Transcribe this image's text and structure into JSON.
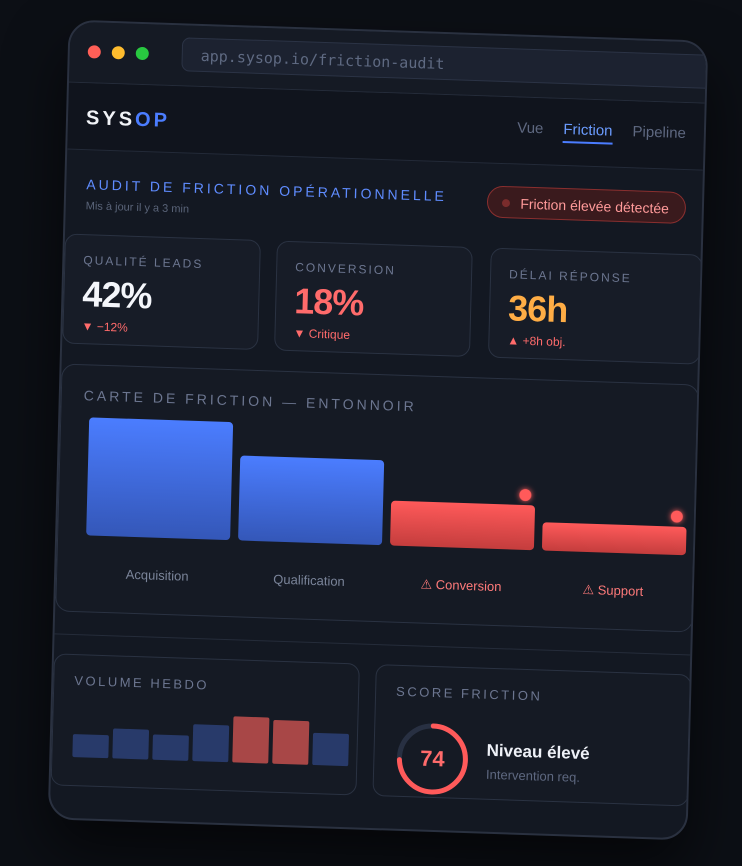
{
  "browser": {
    "url": "app.sysop.io/friction-audit"
  },
  "brand": {
    "name_main": "SYS",
    "name_accent": "OP"
  },
  "nav": {
    "tabs": [
      "Vue",
      "Friction",
      "Pipeline"
    ],
    "active": "Friction"
  },
  "audit": {
    "title": "AUDIT DE FRICTION OPÉRATIONNELLE",
    "updated": "Mis à jour il y a 3 min",
    "alert": "Friction élevée détectée"
  },
  "kpis": [
    {
      "label": "QUALITÉ LEADS",
      "value": "42%",
      "delta": "▼ −12%",
      "color": "#f4f6fb"
    },
    {
      "label": "CONVERSION",
      "value": "18%",
      "delta": "▼ Critique",
      "color": "#ff6b6b"
    },
    {
      "label": "DÉLAI RÉPONSE",
      "value": "36h",
      "delta": "▲ +8h obj.",
      "color": "#ffad45"
    }
  ],
  "chart_data": {
    "type": "bar",
    "title": "CARTE DE FRICTION — ENTONNOIR",
    "categories": [
      "Acquisition",
      "Qualification",
      "⚠ Conversion",
      "⚠ Support"
    ],
    "values": [
      100,
      72,
      38,
      24
    ],
    "flags": [
      false,
      false,
      true,
      true
    ],
    "colors": {
      "normal": [
        "#4b7dff",
        "#3457b8"
      ],
      "friction": [
        "#ff5a5a",
        "#c43d3d"
      ]
    }
  },
  "volume": {
    "title": "VOLUME HEBDO",
    "bars": [
      0.5,
      0.65,
      0.55,
      0.8,
      1.0,
      0.95,
      0.7
    ],
    "highlight": [
      4,
      5
    ]
  },
  "score": {
    "title": "SCORE FRICTION",
    "value": "74",
    "fraction": 0.74,
    "level": "Niveau élevé",
    "note": "Intervention req."
  }
}
